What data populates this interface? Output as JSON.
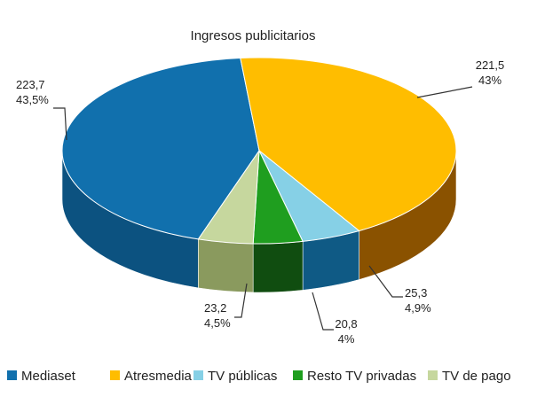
{
  "chart_data": {
    "type": "pie",
    "style": "3d",
    "title": "Ingresos publicitarios",
    "legend_position": "bottom",
    "slices": [
      {
        "name": "Mediaset",
        "value": 223.7,
        "value_label": "223,7",
        "percent_label": "43,5%",
        "color": "#1170AD",
        "side_color": "#0C5280"
      },
      {
        "name": "Atresmedia",
        "value": 221.5,
        "value_label": "221,5",
        "percent_label": "43%",
        "color": "#FFBD00",
        "side_color": "#8A5200"
      },
      {
        "name": "TV públicas",
        "value": 25.3,
        "value_label": "25,3",
        "percent_label": "4,9%",
        "color": "#86D0E6",
        "side_color": "#0F5A85"
      },
      {
        "name": "Resto TV privadas",
        "value": 20.8,
        "value_label": "20,8",
        "percent_label": "4%",
        "color": "#1F9E1F",
        "side_color": "#104D10"
      },
      {
        "name": "TV de pago",
        "value": 23.2,
        "value_label": "23,2",
        "percent_label": "4,5%",
        "color": "#C6D79E",
        "side_color": "#8A9A5E"
      }
    ]
  }
}
